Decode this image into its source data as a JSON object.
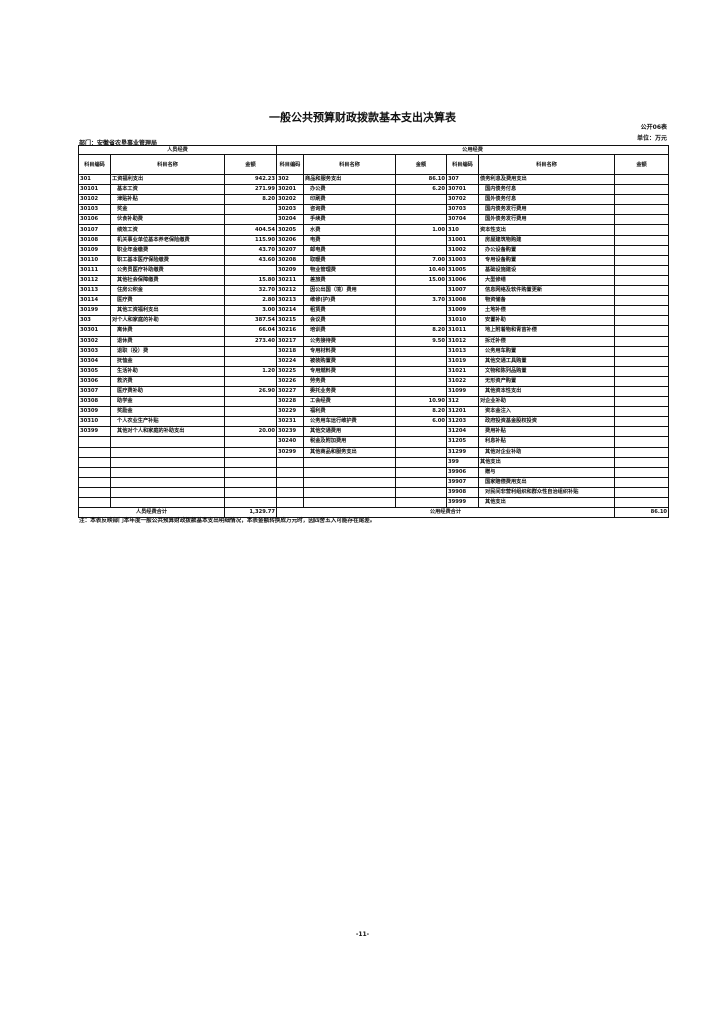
{
  "title": "一般公共预算财政拨款基本支出决算表",
  "form_no": "公开06表",
  "unit": "单位：万元",
  "department": "部门：安徽省农垦事业管理局",
  "headers": {
    "personnel": "人员经费",
    "public": "公用经费",
    "code": "科目编码",
    "code_short": "科目编码",
    "name": "科目名称",
    "amount": "金额"
  },
  "rows": [
    [
      [
        "301",
        "工资福利支出",
        "942.23"
      ],
      [
        "302",
        "商品和服务支出",
        "86.10"
      ],
      [
        "307",
        "债务利息及费用支出",
        ""
      ]
    ],
    [
      [
        "30101",
        "基本工资",
        "271.99"
      ],
      [
        "30201",
        "办公费",
        "6.20"
      ],
      [
        "30701",
        "国内债务付息",
        ""
      ]
    ],
    [
      [
        "30102",
        "津贴补贴",
        "8.20"
      ],
      [
        "30202",
        "印刷费",
        ""
      ],
      [
        "30702",
        "国外债务付息",
        ""
      ]
    ],
    [
      [
        "30103",
        "奖金",
        ""
      ],
      [
        "30203",
        "咨询费",
        ""
      ],
      [
        "30703",
        "国内债务发行费用",
        ""
      ]
    ],
    [
      [
        "30106",
        "伙食补助费",
        ""
      ],
      [
        "30204",
        "手续费",
        ""
      ],
      [
        "30704",
        "国外债务发行费用",
        ""
      ]
    ],
    [
      [
        "30107",
        "绩效工资",
        "404.54"
      ],
      [
        "30205",
        "水费",
        "1.00"
      ],
      [
        "310",
        "资本性支出",
        ""
      ]
    ],
    [
      [
        "30108",
        "机关事业单位基本养老保险缴费",
        "115.90"
      ],
      [
        "30206",
        "电费",
        ""
      ],
      [
        "31001",
        "房屋建筑物购建",
        ""
      ]
    ],
    [
      [
        "30109",
        "职业年金缴费",
        "43.70"
      ],
      [
        "30207",
        "邮电费",
        ""
      ],
      [
        "31002",
        "办公设备购置",
        ""
      ]
    ],
    [
      [
        "30110",
        "职工基本医疗保险缴费",
        "43.60"
      ],
      [
        "30208",
        "取暖费",
        "7.00"
      ],
      [
        "31003",
        "专用设备购置",
        ""
      ]
    ],
    [
      [
        "30111",
        "公务员医疗补助缴费",
        ""
      ],
      [
        "30209",
        "物业管理费",
        "10.40"
      ],
      [
        "31005",
        "基础设施建设",
        ""
      ]
    ],
    [
      [
        "30112",
        "其他社会保障缴费",
        "15.80"
      ],
      [
        "30211",
        "差旅费",
        "15.00"
      ],
      [
        "31006",
        "大型修缮",
        ""
      ]
    ],
    [
      [
        "30113",
        "住房公积金",
        "32.70"
      ],
      [
        "30212",
        "因公出国（境）费用",
        ""
      ],
      [
        "31007",
        "信息网络及软件购置更新",
        ""
      ]
    ],
    [
      [
        "30114",
        "医疗费",
        "2.80"
      ],
      [
        "30213",
        "维修(护)费",
        "3.70"
      ],
      [
        "31008",
        "物资储备",
        ""
      ]
    ],
    [
      [
        "30199",
        "其他工资福利支出",
        "3.00"
      ],
      [
        "30214",
        "租赁费",
        ""
      ],
      [
        "31009",
        "土地补偿",
        ""
      ]
    ],
    [
      [
        "303",
        "对个人和家庭的补助",
        "387.54"
      ],
      [
        "30215",
        "会议费",
        ""
      ],
      [
        "31010",
        "安置补助",
        ""
      ]
    ],
    [
      [
        "30301",
        "离休费",
        "66.04"
      ],
      [
        "30216",
        "培训费",
        "8.20"
      ],
      [
        "31011",
        "地上附着物和青苗补偿",
        ""
      ]
    ],
    [
      [
        "30302",
        "退休费",
        "273.40"
      ],
      [
        "30217",
        "公务接待费",
        "9.50"
      ],
      [
        "31012",
        "拆迁补偿",
        ""
      ]
    ],
    [
      [
        "30303",
        "退职（役）费",
        ""
      ],
      [
        "30218",
        "专用材料费",
        ""
      ],
      [
        "31013",
        "公务用车购置",
        ""
      ]
    ],
    [
      [
        "30304",
        "抚恤金",
        ""
      ],
      [
        "30224",
        "被装购置费",
        ""
      ],
      [
        "31019",
        "其他交通工具购置",
        ""
      ]
    ],
    [
      [
        "30305",
        "生活补助",
        "1.20"
      ],
      [
        "30225",
        "专用燃料费",
        ""
      ],
      [
        "31021",
        "文物和陈列品购置",
        ""
      ]
    ],
    [
      [
        "30306",
        "救济费",
        ""
      ],
      [
        "30226",
        "劳务费",
        ""
      ],
      [
        "31022",
        "无形资产购置",
        ""
      ]
    ],
    [
      [
        "30307",
        "医疗费补助",
        "26.90"
      ],
      [
        "30227",
        "委托业务费",
        ""
      ],
      [
        "31099",
        "其他资本性支出",
        ""
      ]
    ],
    [
      [
        "30308",
        "助学金",
        ""
      ],
      [
        "30228",
        "工会经费",
        "10.90"
      ],
      [
        "312",
        "对企业补助",
        ""
      ]
    ],
    [
      [
        "30309",
        "奖励金",
        ""
      ],
      [
        "30229",
        "福利费",
        "8.20"
      ],
      [
        "31201",
        "资本金注入",
        ""
      ]
    ],
    [
      [
        "30310",
        "个人农业生产补贴",
        ""
      ],
      [
        "30231",
        "公务用车运行维护费",
        "6.00"
      ],
      [
        "31203",
        "政府投资基金股权投资",
        ""
      ]
    ],
    [
      [
        "30399",
        "其他对个人和家庭的补助支出",
        "20.00"
      ],
      [
        "30239",
        "其他交通费用",
        ""
      ],
      [
        "31204",
        "费用补贴",
        ""
      ]
    ],
    [
      [
        "",
        "",
        ""
      ],
      [
        "30240",
        "税金及附加费用",
        ""
      ],
      [
        "31205",
        "利息补贴",
        ""
      ]
    ],
    [
      [
        "",
        "",
        ""
      ],
      [
        "30299",
        "其他商品和服务支出",
        ""
      ],
      [
        "31299",
        "其他对企业补助",
        ""
      ]
    ],
    [
      [
        "",
        "",
        ""
      ],
      [
        "",
        "",
        ""
      ],
      [
        "399",
        "其他支出",
        ""
      ]
    ],
    [
      [
        "",
        "",
        ""
      ],
      [
        "",
        "",
        ""
      ],
      [
        "39906",
        "赠与",
        ""
      ]
    ],
    [
      [
        "",
        "",
        ""
      ],
      [
        "",
        "",
        ""
      ],
      [
        "39907",
        "国家赔偿费用支出",
        ""
      ]
    ],
    [
      [
        "",
        "",
        ""
      ],
      [
        "",
        "",
        ""
      ],
      [
        "39908",
        "对民间非营利组织和群众性自治组织补贴",
        ""
      ]
    ],
    [
      [
        "",
        "",
        ""
      ],
      [
        "",
        "",
        ""
      ],
      [
        "39999",
        "其他支出",
        ""
      ]
    ]
  ],
  "totals": {
    "personnel_label": "人员经费合计",
    "personnel_amount": "1,329.77",
    "public_label": "公用经费合计",
    "public_amount": "86.10"
  },
  "note": "注：本表反映部门本年度一般公共预算财政拨款基本支出明细情况，本表金额转换成万元时，因四舍五入可能存在尾差。",
  "page_number": "-11-"
}
